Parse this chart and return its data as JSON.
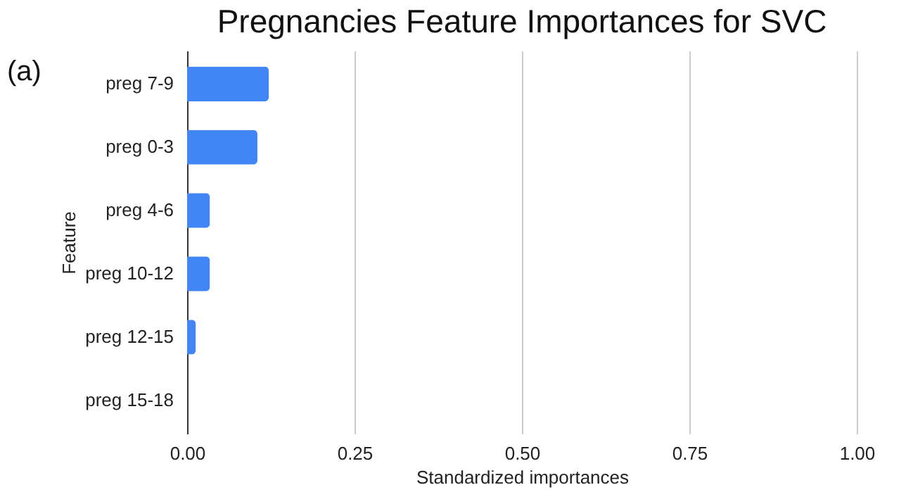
{
  "chart_data": {
    "type": "bar",
    "orientation": "horizontal",
    "title": "Pregnancies Feature Importances for SVC",
    "xlabel": "Standardized importances",
    "ylabel": "Feature",
    "categories": [
      "preg 7-9",
      "preg 0-3",
      "preg 4-6",
      "preg 10-12",
      "preg 12-15",
      "preg 15-18"
    ],
    "values": [
      0.122,
      0.105,
      0.034,
      0.034,
      0.013,
      0.0
    ],
    "color": "#4285f4",
    "xlim": [
      0,
      1
    ],
    "xticks": [
      {
        "value": 0,
        "label": "0.00"
      },
      {
        "value": 0.25,
        "label": "0.25"
      },
      {
        "value": 0.5,
        "label": "0.50"
      },
      {
        "value": 0.75,
        "label": "0.75"
      },
      {
        "value": 1,
        "label": "1.00"
      }
    ],
    "grid": "x",
    "annotations": [
      "(a)"
    ]
  }
}
